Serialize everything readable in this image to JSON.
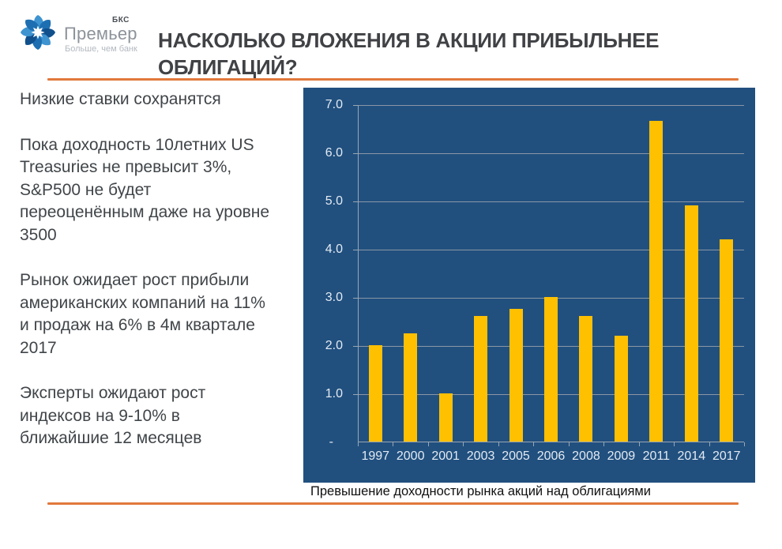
{
  "logo": {
    "brand": "Премьер",
    "superscript": "БКС",
    "tagline": "Больше, чем банк"
  },
  "header": {
    "title": "НАСКОЛЬКО ВЛОЖЕНИЯ В АКЦИИ ПРИБЫЛЬНЕЕ\nОБЛИГАЦИЙ?"
  },
  "left_panel": {
    "paragraphs": [
      "Низкие ставки сохранятся",
      "Пока доходность 10летних US\nTreasuries не превысит 3%,\nS&P500 не будет\nпереоценённым даже на уровне\n3500",
      "Рынок ожидает рост прибыли\nамериканских компаний на 11%\nи продаж на 6% в 4м квартале\n2017",
      "Эксперты ожидают рост\nиндексов на 9-10% в\nближайшие 12 месяцев"
    ]
  },
  "chart_data": {
    "type": "bar",
    "title": "",
    "caption": "Превышение доходности рынка акций над облигациями",
    "categories": [
      "1997",
      "2000",
      "2001",
      "2003",
      "2005",
      "2006",
      "2008",
      "2009",
      "2011",
      "2014",
      "2017"
    ],
    "values": [
      2.0,
      2.25,
      1.0,
      2.6,
      2.75,
      3.0,
      2.6,
      2.2,
      6.65,
      4.9,
      4.2
    ],
    "ylim": [
      0,
      7
    ],
    "y_ticks": [
      7,
      6,
      5,
      4,
      3,
      2,
      1
    ],
    "y_tick_labels": [
      "7.0",
      "6.0",
      "5.0",
      "4.0",
      "3.0",
      "2.0",
      "1.0"
    ],
    "zero_label": "-",
    "grid": true,
    "legend": "none",
    "background": "#21507F",
    "bar_color": "#FFC000",
    "gridline_color": "#8A96A5",
    "axis_color": "#9AA6B2",
    "label_color": "#E3EAF2"
  },
  "colors": {
    "accent_orange": "#E1793C",
    "title_gray": "#404245",
    "body_text": "#404549",
    "logo_blue_dark": "#10508C",
    "logo_blue_mid": "#1D6FB2",
    "logo_blue_light": "#3E94D0"
  }
}
